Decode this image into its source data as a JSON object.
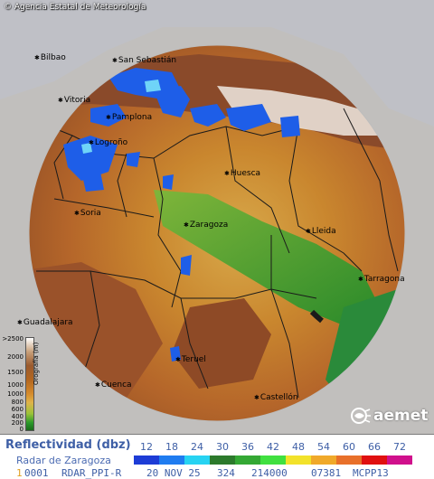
{
  "map": {
    "copyright": "© Agencia Estatal de Meteorología",
    "cities": [
      {
        "id": "bilbao",
        "name": "Bilbao"
      },
      {
        "id": "san-sebastian",
        "name": "San Sebastián"
      },
      {
        "id": "vitoria",
        "name": "Vitoria"
      },
      {
        "id": "pamplona",
        "name": "Pamplona"
      },
      {
        "id": "logrono",
        "name": "Logroño"
      },
      {
        "id": "huesca",
        "name": "Huesca"
      },
      {
        "id": "soria",
        "name": "Soria"
      },
      {
        "id": "zaragoza",
        "name": "Zaragoza"
      },
      {
        "id": "lleida",
        "name": "Lleida"
      },
      {
        "id": "tarragona",
        "name": "Tarragona"
      },
      {
        "id": "guadalajara",
        "name": "Guadalajara"
      },
      {
        "id": "teruel",
        "name": "Teruel"
      },
      {
        "id": "cuenca",
        "name": "Cuenca"
      },
      {
        "id": "castellon",
        "name": "Castellón"
      }
    ],
    "elevation_legend": {
      "axis_label": "Orografía (m)",
      "ticks": [
        ">2500",
        "2000",
        "1500",
        "1000",
        "1000",
        "800",
        "600",
        "400",
        "200",
        "0"
      ]
    },
    "logo_text": "aemet"
  },
  "legend": {
    "title": "Reflectividad (dbz)",
    "radar_name": "Radar de Zaragoza",
    "scale": [
      {
        "value": "12",
        "color": "#1d3cd6"
      },
      {
        "value": "18",
        "color": "#1f7cf0"
      },
      {
        "value": "24",
        "color": "#27d3f2"
      },
      {
        "value": "30",
        "color": "#2c7a2c"
      },
      {
        "value": "36",
        "color": "#34a834"
      },
      {
        "value": "42",
        "color": "#40e040"
      },
      {
        "value": "48",
        "color": "#f2e22a"
      },
      {
        "value": "54",
        "color": "#f0a92a"
      },
      {
        "value": "60",
        "color": "#e8702a"
      },
      {
        "value": "66",
        "color": "#e01010"
      },
      {
        "value": "72",
        "color": "#d0108c"
      }
    ]
  },
  "status": {
    "index": "1",
    "product_id": "0001",
    "product": "RDAR_PPI-R",
    "date": "20 NOV 25",
    "time": "324",
    "code1": "214000",
    "code2": "07381",
    "code3": "MCPP13"
  },
  "colors": {
    "lowland": "#2f8f2f",
    "plain": "#d08a2c",
    "mountain": "#a2542a",
    "outside_range": "#d8d8d8",
    "radar_echo": "#1e5ee8"
  }
}
